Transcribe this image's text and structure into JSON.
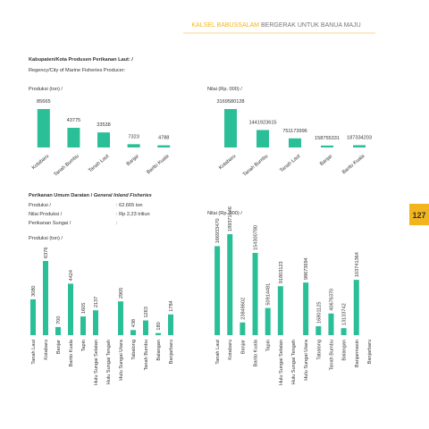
{
  "header": {
    "highlight": "KALSEL BABUSSALAM",
    "rest": "BERGERAK UNTUK BANUA MAJU"
  },
  "page_number": "127",
  "section1": {
    "title": "Kabupaten/Kota Produsen Perikanan Laut: /",
    "subtitle": "Regency/City of Marine Fisheries Producer:"
  },
  "section2": {
    "title": "Perikanan Umum Daratan / ",
    "title_italic": "General Inland Fisheries",
    "rows": [
      [
        "Produksi /",
        ": 62.665 ton"
      ],
      [
        "Nilai Produksi /",
        ": Rp 2,23 triliun"
      ],
      [
        "Perikanan Sungai /",
        ":"
      ]
    ]
  },
  "chart_data": [
    {
      "type": "bar",
      "title": "Produksi (ton) /",
      "color": "#2bbf98",
      "categories": [
        "Kotabaru",
        "Tanah Bumbu",
        "Tanah Laut",
        "Banjar",
        "Barito Kuala"
      ],
      "values": [
        85665,
        43775,
        33538,
        7323,
        4788
      ]
    },
    {
      "type": "bar",
      "title": "Nilai (Rp. 000) /",
      "color": "#2bbf98",
      "categories": [
        "Kotabaru",
        "Tanah Bumbu",
        "Tanah Laut",
        "Banjar",
        "Barito Kuala"
      ],
      "values": [
        3169580128,
        1441923615,
        751173996,
        158755331,
        187334203
      ]
    },
    {
      "type": "bar",
      "title": "Produksi (ton) /",
      "color": "#2bbf98",
      "categories": [
        "Tanah Laut",
        "Kotabaru",
        "Banjar",
        "Barito Kuala",
        "Tapin",
        "Hulu Sungai Selatan",
        "Hulu Sungai Tengah",
        "Hulu Sungai Utara",
        "Tabalong",
        "Tanah Bumbu",
        "Balangan",
        "Banjarbaru"
      ],
      "values": [
        3080,
        6376,
        700,
        4424,
        1605,
        2137,
        null,
        2905,
        438,
        1263,
        180,
        1784
      ]
    },
    {
      "type": "bar",
      "title": "Nilai (Rp. 000) /",
      "color": "#2bbf98",
      "categories": [
        "Tanah Laut",
        "Kotabaru",
        "Banjar",
        "Barito Kuala",
        "Tapin",
        "Hulu Sungai Selatan",
        "Hulu Sungai Tengah",
        "Hulu Sungai Utara",
        "Tabalong",
        "Tanah Bumbu",
        "Balangan",
        "Banjarmasin",
        "Banjarbaru"
      ],
      "values": [
        166933470,
        189371646,
        23848602,
        154300780,
        50914481,
        91803123,
        null,
        98673694,
        16801125,
        40676370,
        13133742,
        103741364,
        null
      ]
    }
  ]
}
